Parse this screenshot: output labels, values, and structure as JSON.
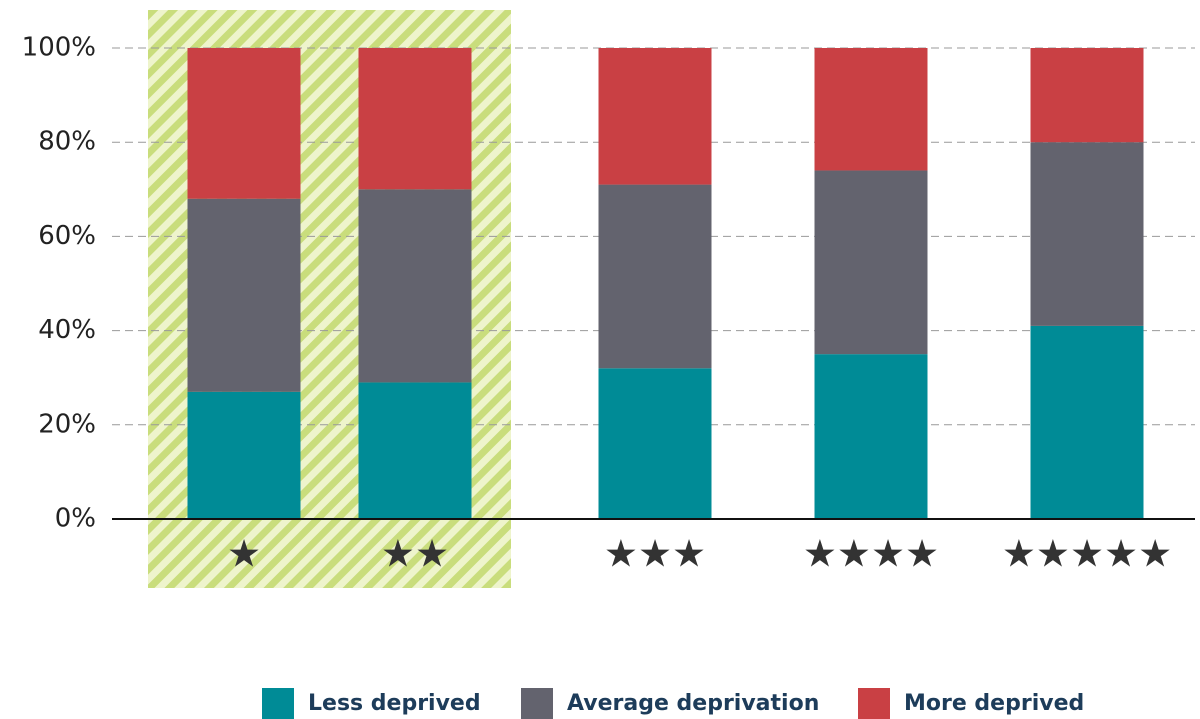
{
  "chart_data": {
    "type": "stacked_bar",
    "categories": [
      "★",
      "★★",
      "★★★",
      "★★★★",
      "★★★★★"
    ],
    "series": [
      {
        "name": "Less deprived",
        "color": "#008b96",
        "values": [
          27,
          29,
          32,
          35,
          41
        ]
      },
      {
        "name": "Average deprivation",
        "color": "#63636e",
        "values": [
          41,
          41,
          39,
          39,
          39
        ]
      },
      {
        "name": "More deprived",
        "color": "#c94044",
        "values": [
          32,
          30,
          29,
          26,
          20
        ]
      }
    ],
    "ylim": [
      0,
      100
    ],
    "yticks": [
      {
        "value": 0,
        "label": "0%"
      },
      {
        "value": 20,
        "label": "20%"
      },
      {
        "value": 40,
        "label": "40%"
      },
      {
        "value": 60,
        "label": "60%"
      },
      {
        "value": 80,
        "label": "80%"
      },
      {
        "value": 100,
        "label": "100%"
      }
    ],
    "grid": true,
    "legend": "bottom"
  }
}
